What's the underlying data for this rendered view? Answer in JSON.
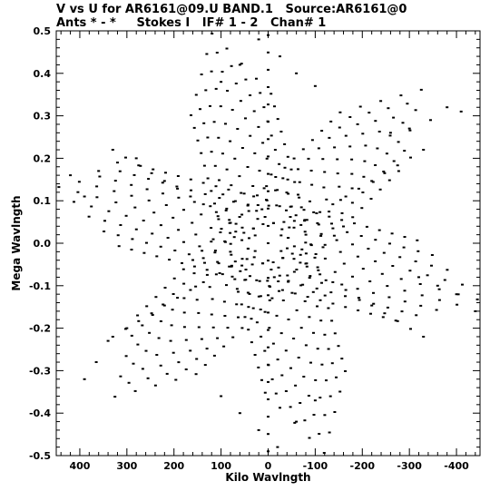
{
  "chart_data": {
    "type": "scatter",
    "title_line1": "V vs U for AR6161@09.U BAND.1   Source:AR6161@0",
    "title_line2": "Ants * - *     Stokes I   IF# 1 - 2   Chan# 1",
    "xlabel": "Kilo Wavlngth",
    "ylabel": "Mega Wavlngth",
    "xlim": [
      450,
      -450
    ],
    "ylim": [
      -0.5,
      0.5
    ],
    "x_ticks": [
      400,
      300,
      200,
      100,
      0,
      -100,
      -200,
      -300,
      -400
    ],
    "x_tick_labels": [
      "400",
      "300",
      "200",
      "100",
      "0",
      "-100",
      "-200",
      "-300",
      "-400"
    ],
    "y_ticks": [
      0.5,
      0.4,
      0.3,
      0.2,
      0.1,
      0.0,
      -0.1,
      -0.2,
      -0.3,
      -0.4,
      -0.5
    ],
    "y_tick_labels": [
      "0.5",
      "0.4",
      "0.3",
      "0.2",
      "0.1",
      "0.0",
      "-0.1",
      "-0.2",
      "-0.3",
      "-0.4",
      "-0.5"
    ],
    "grid": false,
    "marker_color": "#000000",
    "pattern": {
      "description_free": true,
      "arms_deg": [
        15,
        75,
        135,
        195,
        255,
        315
      ],
      "arm_radius_kl": 460,
      "arm_tracks": 9,
      "points_per_track": 11,
      "cross_tracks": [
        [
          [
            330,
            0.22
          ],
          [
            0,
            0
          ],
          [
            -330,
            -0.22
          ]
        ],
        [
          [
            -330,
            0.22
          ],
          [
            0,
            0
          ],
          [
            330,
            -0.22
          ]
        ],
        [
          [
            0,
            0.49
          ],
          [
            0,
            0
          ],
          [
            0,
            -0.49
          ]
        ]
      ]
    },
    "series": [
      {
        "points": [
          [
            20,
            0.48
          ],
          [
            -25,
            0.44
          ],
          [
            60,
            0.42
          ],
          [
            -60,
            0.4
          ],
          [
            100,
            0.38
          ],
          [
            -100,
            0.37
          ],
          [
            -380,
            0.32
          ],
          [
            -410,
            0.31
          ],
          [
            -345,
            0.29
          ],
          [
            -300,
            0.27
          ],
          [
            -260,
            0.26
          ],
          [
            420,
            0.16
          ],
          [
            390,
            0.11
          ],
          [
            360,
            0.17
          ],
          [
            320,
            0.19
          ],
          [
            280,
            0.2
          ],
          [
            390,
            -0.32
          ],
          [
            365,
            -0.28
          ],
          [
            340,
            -0.23
          ],
          [
            300,
            -0.2
          ],
          [
            -440,
            -0.16
          ],
          [
            -400,
            -0.12
          ],
          [
            -360,
            -0.1
          ],
          [
            -320,
            -0.08
          ],
          [
            -20,
            -0.48
          ],
          [
            20,
            -0.44
          ],
          [
            -60,
            -0.42
          ],
          [
            60,
            -0.4
          ],
          [
            -100,
            -0.37
          ],
          [
            100,
            -0.36
          ]
        ]
      }
    ]
  }
}
